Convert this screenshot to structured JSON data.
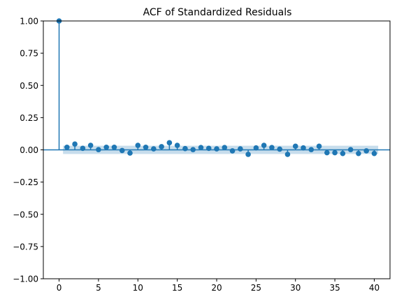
{
  "chart_data": {
    "type": "stem",
    "title": "ACF of Standardized Residuals",
    "xlabel": "",
    "ylabel": "",
    "xlim": [
      -2,
      42
    ],
    "ylim": [
      -1.0,
      1.0
    ],
    "xticks": [
      0,
      5,
      10,
      15,
      20,
      25,
      30,
      35,
      40
    ],
    "yticks": [
      -1.0,
      -0.75,
      -0.5,
      -0.25,
      0.0,
      0.25,
      0.5,
      0.75,
      1.0
    ],
    "ytick_labels": [
      "−1.00",
      "−0.75",
      "−0.50",
      "−0.25",
      "0.00",
      "0.25",
      "0.50",
      "0.75",
      "1.00"
    ],
    "grid": false,
    "baseline": 0.0,
    "lags": [
      0,
      1,
      2,
      3,
      4,
      5,
      6,
      7,
      8,
      9,
      10,
      11,
      12,
      13,
      14,
      15,
      16,
      17,
      18,
      19,
      20,
      21,
      22,
      23,
      24,
      25,
      26,
      27,
      28,
      29,
      30,
      31,
      32,
      33,
      34,
      35,
      36,
      37,
      38,
      39,
      40
    ],
    "values": [
      1.0,
      0.02,
      0.045,
      0.012,
      0.035,
      0.002,
      0.02,
      0.02,
      -0.005,
      -0.025,
      0.035,
      0.02,
      0.008,
      0.025,
      0.055,
      0.035,
      0.01,
      0.002,
      0.018,
      0.012,
      0.008,
      0.018,
      -0.008,
      0.008,
      -0.035,
      0.015,
      0.035,
      0.018,
      0.006,
      -0.035,
      0.028,
      0.015,
      0.002,
      0.028,
      -0.022,
      -0.022,
      -0.028,
      0.002,
      -0.028,
      -0.008,
      -0.028
    ],
    "confidence_band": {
      "x_start": 0.5,
      "x_end": 40.5,
      "lower": -0.032,
      "upper": 0.032
    },
    "colors": {
      "series": "#1f77b4",
      "band": "#1f77b4",
      "axes": "#000000"
    }
  }
}
